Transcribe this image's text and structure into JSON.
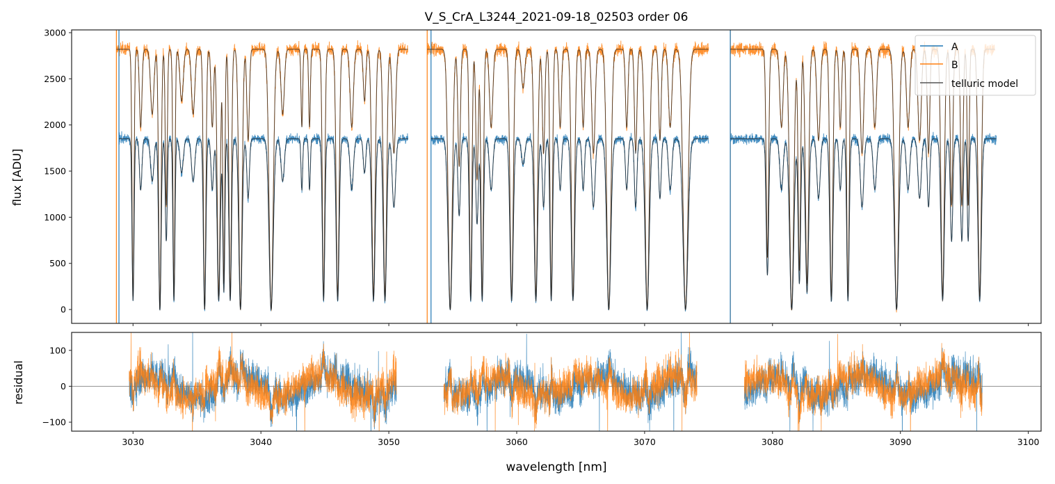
{
  "chart_data": {
    "type": "line",
    "title": "V_S_CrA_L3244_2021-09-18_02503  order 06",
    "xlabel": "wavelength [nm]",
    "panels": [
      {
        "name": "spectrum",
        "ylabel": "flux [ADU]",
        "ylim": [
          -150,
          3030
        ],
        "yticks": [
          0,
          500,
          1000,
          1500,
          2000,
          2500,
          3000
        ]
      },
      {
        "name": "residual",
        "ylabel": "residual",
        "ylim": [
          -125,
          150
        ],
        "yticks": [
          -100,
          0,
          100
        ],
        "reference_line": 0
      }
    ],
    "xlim": [
      3025.2,
      3101.0
    ],
    "xticks": [
      3030,
      3040,
      3050,
      3060,
      3070,
      3080,
      3090,
      3100
    ],
    "legend": {
      "placement": "top-right",
      "entries": [
        "A",
        "B",
        "telluric model"
      ]
    },
    "colors": {
      "A": "#1f77b4",
      "B": "#ff7f0e",
      "model": "#444444"
    },
    "series": [
      {
        "name": "A",
        "continuum": 1850,
        "segments": [
          [
            3028.9,
            3051.5
          ],
          [
            3053.3,
            3075.0
          ],
          [
            3076.7,
            3097.5
          ]
        ]
      },
      {
        "name": "B",
        "continuum": 2820,
        "segments": [
          [
            3028.7,
            3051.5
          ],
          [
            3053.0,
            3075.0
          ],
          [
            3076.7,
            3097.4
          ]
        ]
      },
      {
        "name": "telluric model",
        "segments": [
          [
            3029.7,
            3050.6
          ],
          [
            3054.3,
            3074.1
          ],
          [
            3077.8,
            3096.4
          ]
        ]
      }
    ],
    "telluric_lines": [
      [
        3030.0,
        0.95,
        0.12
      ],
      [
        3030.6,
        0.3,
        0.15
      ],
      [
        3031.5,
        0.25,
        0.2
      ],
      [
        3032.1,
        1.0,
        0.15
      ],
      [
        3032.6,
        0.6,
        0.12
      ],
      [
        3033.2,
        0.95,
        0.12
      ],
      [
        3033.8,
        0.2,
        0.2
      ],
      [
        3034.7,
        0.25,
        0.2
      ],
      [
        3035.6,
        1.0,
        0.15
      ],
      [
        3036.2,
        0.3,
        0.15
      ],
      [
        3036.7,
        0.95,
        0.18
      ],
      [
        3037.1,
        0.9,
        0.12
      ],
      [
        3037.6,
        0.95,
        0.15
      ],
      [
        3038.4,
        1.0,
        0.2
      ],
      [
        3039.0,
        0.35,
        0.15
      ],
      [
        3040.8,
        1.0,
        0.25
      ],
      [
        3041.7,
        0.25,
        0.2
      ],
      [
        3043.2,
        0.3,
        0.1
      ],
      [
        3043.8,
        0.3,
        0.1
      ],
      [
        3044.9,
        0.95,
        0.15
      ],
      [
        3046.0,
        0.95,
        0.18
      ],
      [
        3047.1,
        0.3,
        0.2
      ],
      [
        3048.1,
        0.2,
        0.15
      ],
      [
        3048.8,
        0.95,
        0.2
      ],
      [
        3049.7,
        0.95,
        0.2
      ],
      [
        3050.4,
        0.4,
        0.2
      ],
      [
        3054.8,
        1.0,
        0.25
      ],
      [
        3055.5,
        0.45,
        0.15
      ],
      [
        3056.4,
        0.95,
        0.15
      ],
      [
        3056.9,
        0.5,
        0.15
      ],
      [
        3057.3,
        0.95,
        0.15
      ],
      [
        3058.0,
        0.3,
        0.2
      ],
      [
        3059.6,
        0.95,
        0.2
      ],
      [
        3060.5,
        0.15,
        0.2
      ],
      [
        3061.5,
        0.95,
        0.2
      ],
      [
        3062.1,
        0.4,
        0.15
      ],
      [
        3062.7,
        0.95,
        0.15
      ],
      [
        3063.4,
        0.3,
        0.15
      ],
      [
        3064.4,
        0.95,
        0.2
      ],
      [
        3065.2,
        0.3,
        0.15
      ],
      [
        3066.0,
        0.4,
        0.2
      ],
      [
        3067.2,
        1.0,
        0.25
      ],
      [
        3068.6,
        0.3,
        0.15
      ],
      [
        3069.3,
        0.4,
        0.15
      ],
      [
        3070.2,
        1.0,
        0.25
      ],
      [
        3071.2,
        0.35,
        0.15
      ],
      [
        3072.0,
        0.3,
        0.2
      ],
      [
        3073.2,
        1.0,
        0.3
      ],
      [
        3079.6,
        0.8,
        0.15
      ],
      [
        3080.7,
        0.3,
        0.2
      ],
      [
        3081.5,
        1.0,
        0.25
      ],
      [
        3082.1,
        0.85,
        0.15
      ],
      [
        3082.7,
        0.9,
        0.2
      ],
      [
        3083.6,
        0.35,
        0.2
      ],
      [
        3084.6,
        0.95,
        0.18
      ],
      [
        3085.3,
        0.3,
        0.15
      ],
      [
        3085.9,
        0.95,
        0.15
      ],
      [
        3087.0,
        0.4,
        0.2
      ],
      [
        3088.0,
        0.3,
        0.2
      ],
      [
        3089.7,
        1.0,
        0.25
      ],
      [
        3090.6,
        0.3,
        0.2
      ],
      [
        3091.5,
        0.35,
        0.2
      ],
      [
        3092.2,
        0.4,
        0.15
      ],
      [
        3093.3,
        0.95,
        0.2
      ],
      [
        3094.0,
        0.6,
        0.15
      ],
      [
        3094.8,
        0.6,
        0.15
      ],
      [
        3095.3,
        0.6,
        0.12
      ],
      [
        3096.2,
        0.95,
        0.2
      ]
    ]
  }
}
